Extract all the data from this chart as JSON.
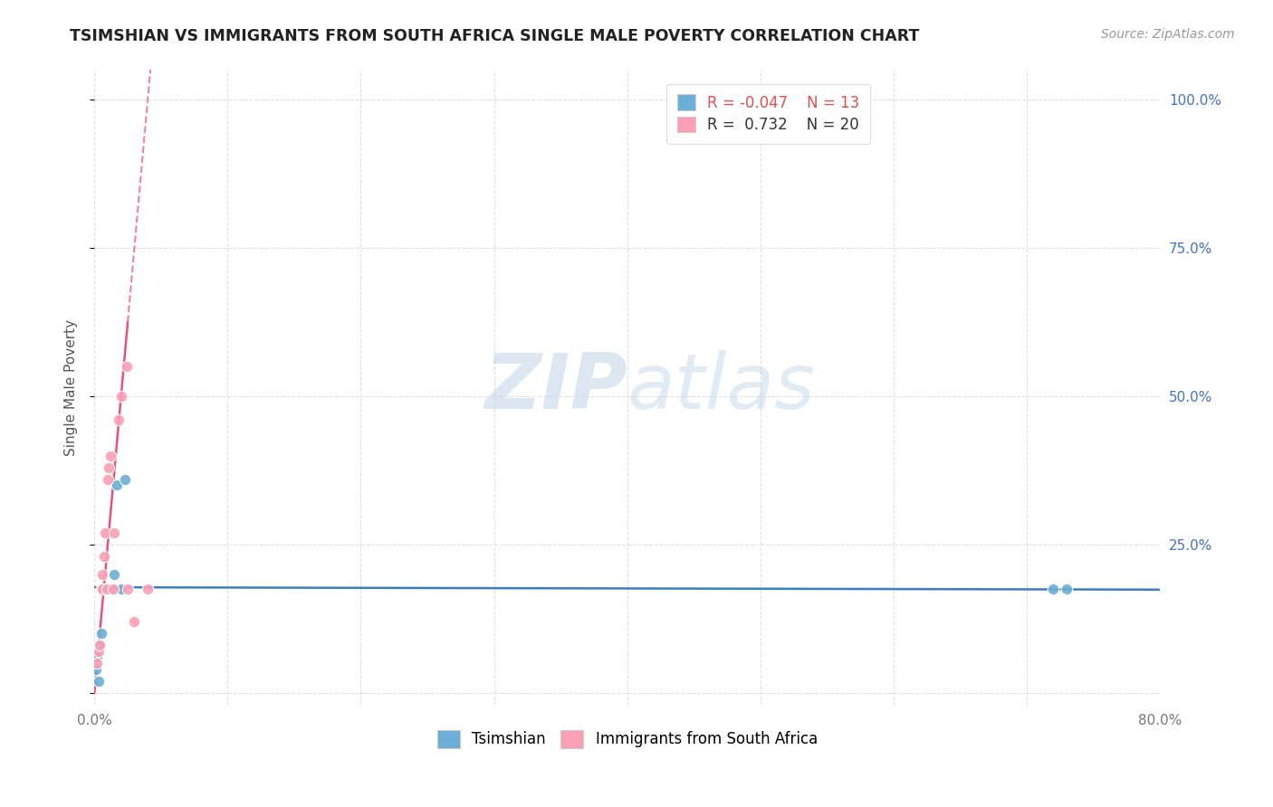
{
  "title": "TSIMSHIAN VS IMMIGRANTS FROM SOUTH AFRICA SINGLE MALE POVERTY CORRELATION CHART",
  "source": "Source: ZipAtlas.com",
  "ylabel": "Single Male Poverty",
  "watermark": "ZIPatlas",
  "legend_tsimshian_R": "-0.047",
  "legend_tsimshian_N": "13",
  "legend_immigrants_R": "0.732",
  "legend_immigrants_N": "20",
  "xlim": [
    0.0,
    0.8
  ],
  "ylim": [
    -0.02,
    1.05
  ],
  "x_ticks": [
    0.0,
    0.1,
    0.2,
    0.3,
    0.4,
    0.5,
    0.6,
    0.7,
    0.8
  ],
  "x_tick_labels": [
    "0.0%",
    "",
    "",
    "",
    "",
    "",
    "",
    "",
    "80.0%"
  ],
  "y_ticks_right": [
    0.0,
    0.25,
    0.5,
    0.75,
    1.0
  ],
  "y_tick_labels_right": [
    "",
    "25.0%",
    "50.0%",
    "75.0%",
    "100.0%"
  ],
  "tsimshian_x": [
    0.001,
    0.002,
    0.003,
    0.004,
    0.005,
    0.008,
    0.012,
    0.015,
    0.017,
    0.02,
    0.023,
    0.72,
    0.73
  ],
  "tsimshian_y": [
    0.04,
    0.06,
    0.02,
    0.08,
    0.1,
    0.175,
    0.175,
    0.2,
    0.35,
    0.175,
    0.36,
    0.175,
    0.175
  ],
  "immigrants_x": [
    0.002,
    0.003,
    0.004,
    0.005,
    0.006,
    0.006,
    0.007,
    0.008,
    0.009,
    0.01,
    0.011,
    0.012,
    0.014,
    0.015,
    0.018,
    0.02,
    0.024,
    0.025,
    0.03,
    0.04
  ],
  "immigrants_y": [
    0.05,
    0.07,
    0.08,
    0.175,
    0.175,
    0.2,
    0.23,
    0.27,
    0.175,
    0.36,
    0.38,
    0.4,
    0.175,
    0.27,
    0.46,
    0.5,
    0.55,
    0.175,
    0.12,
    0.175
  ],
  "bg_color": "#ffffff",
  "grid_color": "#e0e0e0",
  "tsimshian_dot_color": "#6baed6",
  "immigrants_dot_color": "#fa9fb5",
  "tsimshian_line_color": "#3a7fc1",
  "immigrants_line_color": "#e8517a"
}
